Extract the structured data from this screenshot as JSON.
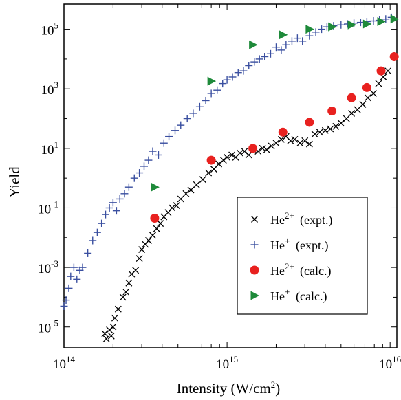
{
  "chart_data": {
    "type": "scatter",
    "xlabel": "Intensity (W/cm",
    "xlabel_sup": "2",
    "xlabel_end": ")",
    "ylabel": "Yield",
    "xscale": "log",
    "yscale": "log",
    "xlim": [
      100000000000000.0,
      1.1e+16
    ],
    "ylim": [
      2e-06,
      700000.0
    ],
    "grid": false,
    "legend_position": "lower-right",
    "x_ticks": [
      {
        "value": 100000000000000.0,
        "base": "10",
        "exp": "14"
      },
      {
        "value": 1000000000000000.0,
        "base": "10",
        "exp": "15"
      },
      {
        "value": 1e+16,
        "base": "10",
        "exp": "16"
      }
    ],
    "y_ticks": [
      {
        "value": 1e-05,
        "base": "10",
        "exp": "-5"
      },
      {
        "value": 0.001,
        "base": "10",
        "exp": "-3"
      },
      {
        "value": 0.1,
        "base": "10",
        "exp": "-1"
      },
      {
        "value": 10.0,
        "base": "10",
        "exp": "1"
      },
      {
        "value": 1000.0,
        "base": "10",
        "exp": "3"
      },
      {
        "value": 100000.0,
        "base": "10",
        "exp": "5"
      }
    ],
    "series": [
      {
        "name": "He",
        "name_sup": "2+",
        "name_suffix": "(expt.)",
        "marker": "x",
        "color": "#000000",
        "x": [
          172000000000000.0,
          178000000000000.0,
          182000000000000.0,
          190000000000000.0,
          195000000000000.0,
          200000000000000.0,
          205000000000000.0,
          215000000000000.0,
          230000000000000.0,
          240000000000000.0,
          250000000000000.0,
          260000000000000.0,
          275000000000000.0,
          290000000000000.0,
          300000000000000.0,
          315000000000000.0,
          330000000000000.0,
          350000000000000.0,
          370000000000000.0,
          390000000000000.0,
          410000000000000.0,
          435000000000000.0,
          460000000000000.0,
          490000000000000.0,
          520000000000000.0,
          560000000000000.0,
          600000000000000.0,
          650000000000000.0,
          710000000000000.0,
          770000000000000.0,
          830000000000000.0,
          890000000000000.0,
          950000000000000.0,
          1000000000000000.0,
          1070000000000000.0,
          1130000000000000.0,
          1200000000000000.0,
          1280000000000000.0,
          1360000000000000.0,
          1450000000000000.0,
          1550000000000000.0,
          1650000000000000.0,
          1750000000000000.0,
          1870000000000000.0,
          2000000000000000.0,
          2150000000000000.0,
          2300000000000000.0,
          2450000000000000.0,
          2600000000000000.0,
          2800000000000000.0,
          3000000000000000.0,
          3200000000000000.0,
          3450000000000000.0,
          3700000000000000.0,
          4000000000000000.0,
          4300000000000000.0,
          4650000000000000.0,
          5000000000000000.0,
          5400000000000000.0,
          5800000000000000.0,
          6300000000000000.0,
          6800000000000000.0,
          7300000000000000.0,
          7900000000000000.0,
          8500000000000000.0,
          9100000000000000.0,
          9700000000000000.0
        ],
        "y": [
          1.5e-06,
          6e-06,
          4e-06,
          8e-06,
          5e-06,
          1e-05,
          2e-05,
          4e-05,
          0.0001,
          0.00015,
          0.0003,
          0.0006,
          0.0008,
          0.002,
          0.004,
          0.006,
          0.008,
          0.012,
          0.02,
          0.03,
          0.05,
          0.07,
          0.1,
          0.12,
          0.2,
          0.3,
          0.4,
          0.6,
          0.9,
          1.5,
          2,
          3,
          4,
          5,
          6,
          5,
          7,
          8,
          6,
          9,
          8,
          10,
          9,
          12,
          15,
          20,
          25,
          18,
          20,
          15,
          18,
          14,
          30,
          35,
          40,
          45,
          55,
          70,
          100,
          150,
          200,
          300,
          500,
          700,
          1500,
          2500,
          4000
        ]
      },
      {
        "name": "He",
        "name_sup": "+",
        "name_suffix": "(expt.)",
        "marker": "+",
        "color": "#3a4fa0",
        "x": [
          100000000000000.0,
          103000000000000.0,
          107000000000000.0,
          110000000000000.0,
          115000000000000.0,
          120000000000000.0,
          125000000000000.0,
          130000000000000.0,
          140000000000000.0,
          150000000000000.0,
          160000000000000.0,
          170000000000000.0,
          180000000000000.0,
          190000000000000.0,
          200000000000000.0,
          210000000000000.0,
          220000000000000.0,
          235000000000000.0,
          250000000000000.0,
          270000000000000.0,
          290000000000000.0,
          310000000000000.0,
          330000000000000.0,
          350000000000000.0,
          380000000000000.0,
          410000000000000.0,
          440000000000000.0,
          480000000000000.0,
          520000000000000.0,
          570000000000000.0,
          620000000000000.0,
          680000000000000.0,
          740000000000000.0,
          800000000000000.0,
          870000000000000.0,
          940000000000000.0,
          1000000000000000.0,
          1080000000000000.0,
          1170000000000000.0,
          1260000000000000.0,
          1360000000000000.0,
          1470000000000000.0,
          1580000000000000.0,
          1700000000000000.0,
          1850000000000000.0,
          2000000000000000.0,
          2150000000000000.0,
          2300000000000000.0,
          2500000000000000.0,
          2700000000000000.0,
          2900000000000000.0,
          3200000000000000.0,
          3500000000000000.0,
          3800000000000000.0,
          4100000000000000.0,
          4500000000000000.0,
          5000000000000000.0,
          5500000000000000.0,
          6000000000000000.0,
          6600000000000000.0,
          7200000000000000.0,
          7900000000000000.0,
          8600000000000000.0,
          9400000000000000.0,
          1.02e+16
        ],
        "y": [
          5e-05,
          8e-05,
          0.0002,
          0.0005,
          0.001,
          0.0004,
          0.0008,
          0.001,
          0.003,
          0.008,
          0.015,
          0.03,
          0.06,
          0.1,
          0.15,
          0.08,
          0.2,
          0.3,
          0.5,
          1,
          1.5,
          2.5,
          4,
          8,
          6,
          15,
          25,
          40,
          60,
          100,
          150,
          250,
          400,
          700,
          900,
          1500,
          2000,
          2500,
          3500,
          4000,
          6000,
          8000,
          10000,
          12000,
          15000,
          25000,
          20000,
          30000,
          40000,
          50000,
          40000,
          60000,
          80000,
          100000,
          120000,
          130000,
          140000,
          150000,
          160000,
          170000,
          180000,
          190000,
          200000,
          220000,
          250000
        ]
      },
      {
        "name": "He",
        "name_sup": "2+",
        "name_suffix": "(calc.)",
        "marker": "circle",
        "color": "#e8211f",
        "x": [
          360000000000000.0,
          800000000000000.0,
          1440000000000000.0,
          2200000000000000.0,
          3200000000000000.0,
          4400000000000000.0,
          5800000000000000.0,
          7200000000000000.0,
          8800000000000000.0,
          1.06e+16
        ],
        "y": [
          0.045,
          4,
          10,
          35,
          75,
          180,
          500,
          1100,
          4000,
          12000
        ]
      },
      {
        "name": "He",
        "name_sup": "+",
        "name_suffix": "(calc.)",
        "marker": "triangle-right",
        "color": "#1e8a3a",
        "x": [
          360000000000000.0,
          800000000000000.0,
          1440000000000000.0,
          2200000000000000.0,
          3200000000000000.0,
          4400000000000000.0,
          5800000000000000.0,
          7200000000000000.0,
          8800000000000000.0,
          1.06e+16
        ],
        "y": [
          0.5,
          1800,
          30000,
          65000,
          100000,
          120000,
          140000,
          150000,
          180000,
          220000
        ]
      }
    ]
  }
}
